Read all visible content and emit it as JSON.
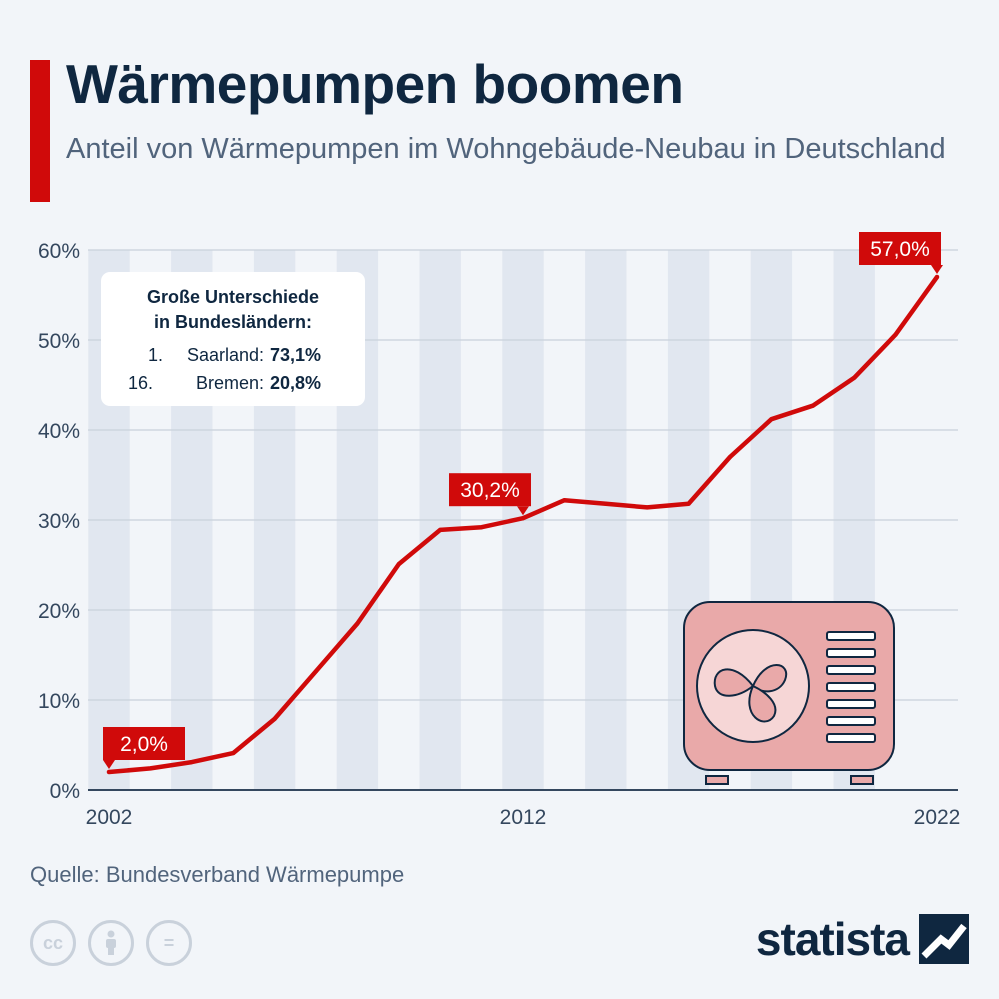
{
  "header": {
    "title": "Wärmepumpen boomen",
    "subtitle": "Anteil von Wärmepumpen im Wohngebäude-Neubau in Deutschland"
  },
  "colors": {
    "accent": "#d00a0a",
    "ink": "#0f2740",
    "muted": "#51647c",
    "stripe": "#e1e7f0",
    "background": "#f2f5f9",
    "icon_fill": "#e9a9a9"
  },
  "infobox": {
    "heading_line1": "Große Unterschiede",
    "heading_line2": "in Bundesländern:",
    "rows": [
      {
        "rank": "1.",
        "name": "Saarland:",
        "value": "73,1%"
      },
      {
        "rank": "16.",
        "name": "Bremen:",
        "value": "20,8%"
      }
    ]
  },
  "chart_data": {
    "type": "line",
    "x": [
      2002,
      2003,
      2004,
      2005,
      2006,
      2007,
      2008,
      2009,
      2010,
      2011,
      2012,
      2013,
      2014,
      2015,
      2016,
      2017,
      2018,
      2019,
      2020,
      2021,
      2022
    ],
    "values": [
      2.0,
      2.4,
      3.1,
      4.1,
      7.9,
      13.2,
      18.5,
      25.1,
      28.9,
      29.2,
      30.2,
      32.2,
      31.8,
      31.4,
      31.8,
      37.0,
      41.2,
      42.7,
      45.8,
      50.6,
      57.0
    ],
    "ylim": [
      0,
      60
    ],
    "yticks": [
      0,
      10,
      20,
      30,
      40,
      50,
      60
    ],
    "ytick_labels": [
      "0%",
      "10%",
      "20%",
      "30%",
      "40%",
      "50%",
      "60%"
    ],
    "xticks": [
      2002,
      2012,
      2022
    ],
    "xtick_labels": [
      "2002",
      "2012",
      "2022"
    ],
    "annotations": [
      {
        "x": 2002,
        "value": 2.0,
        "label": "2,0%"
      },
      {
        "x": 2012,
        "value": 30.2,
        "label": "30,2%"
      },
      {
        "x": 2022,
        "value": 57.0,
        "label": "57,0%"
      }
    ],
    "grid": true,
    "legend": "none"
  },
  "icon": "heat-pump-unit-icon",
  "footer": {
    "source": "Quelle: Bundesverband Wärmepumpe",
    "license_icons": [
      "cc-icon",
      "by-icon",
      "nd-icon"
    ],
    "cc_text": "cc",
    "nd_text": "=",
    "brand": "statista"
  }
}
